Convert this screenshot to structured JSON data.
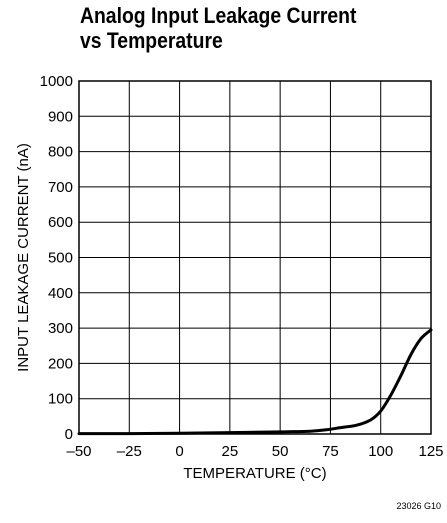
{
  "chart_data": {
    "type": "line",
    "title_lines": [
      "Analog Input Leakage Current",
      "vs Temperature"
    ],
    "xlabel": "TEMPERATURE (°C)",
    "ylabel": "INPUT LEAKAGE CURRENT (nA)",
    "xlim": [
      -50,
      125
    ],
    "ylim": [
      0,
      1000
    ],
    "x_ticks": [
      -50,
      -25,
      0,
      25,
      50,
      75,
      100,
      125
    ],
    "x_tick_labels": [
      "–50",
      "–25",
      "0",
      "25",
      "50",
      "75",
      "100",
      "125"
    ],
    "y_ticks": [
      0,
      100,
      200,
      300,
      400,
      500,
      600,
      700,
      800,
      900,
      1000
    ],
    "y_tick_labels": [
      "0",
      "100",
      "200",
      "300",
      "400",
      "500",
      "600",
      "700",
      "800",
      "900",
      "1000"
    ],
    "grid": true,
    "series": [
      {
        "x": [
          -50,
          -25,
          0,
          25,
          50,
          65,
          73,
          80,
          88,
          95,
          100,
          105,
          110,
          115,
          120,
          125
        ],
        "y": [
          1,
          1,
          2,
          4,
          6,
          8,
          12,
          18,
          25,
          40,
          65,
          110,
          165,
          225,
          270,
          295
        ]
      }
    ]
  },
  "figure_code": "23026 G10"
}
